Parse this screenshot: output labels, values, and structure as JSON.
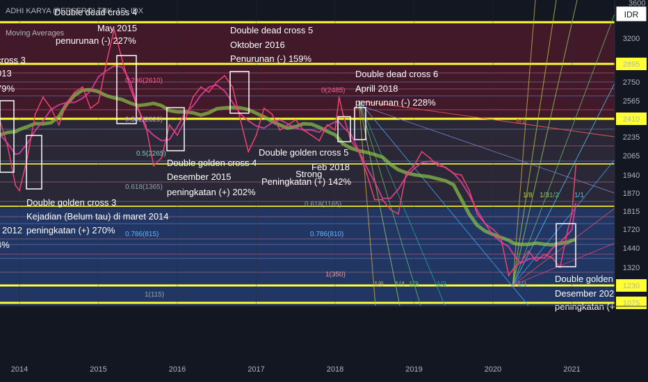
{
  "header": {
    "ticker_line": "ADHI KARYA (PERSERO) TBK, 1D, IDX",
    "indicator": "Moving Averages",
    "currency": "IDR"
  },
  "colors": {
    "background": "#131722",
    "price_line": "#f0436f",
    "ma_short": "#e040a0",
    "ma_long": "#8bc34a",
    "key_level": "#ffff33",
    "box": "#ffffff",
    "fan": "#42a5f5"
  },
  "chart_data": {
    "type": "line",
    "title": "",
    "xlabel": "",
    "ylabel": "",
    "x_ticks": [
      "2014",
      "2015",
      "2016",
      "2017",
      "2018",
      "2019",
      "2020",
      "2021"
    ],
    "y_ticks": [
      3600,
      3200,
      2895,
      2750,
      2565,
      2410,
      2235,
      2065,
      1940,
      1870,
      1815,
      1720,
      1440,
      1320,
      1230,
      1075
    ],
    "highlighted_levels": [
      3380,
      2895,
      2410,
      1230,
      1075
    ],
    "top_clipped_level": 3600,
    "series": [
      {
        "name": "",
        "x": [
          2013.5,
          2013.65,
          2013.75,
          2013.85,
          2013.95,
          2014.0,
          2014.1,
          2014.2,
          2014.3,
          2014.4,
          2014.5,
          2014.6,
          2014.7,
          2014.8,
          2014.9,
          2015.0,
          2015.1,
          2015.2,
          2015.3,
          2015.4,
          2015.5,
          2015.6,
          2015.7,
          2015.8,
          2015.9,
          2016.0,
          2016.1,
          2016.2,
          2016.3,
          2016.4,
          2016.5,
          2016.6,
          2016.7,
          2016.8,
          2016.9,
          2017.0,
          2017.1,
          2017.2,
          2017.3,
          2017.4,
          2017.5,
          2017.6,
          2017.7,
          2017.8,
          2017.9,
          2018.0,
          2018.05,
          2018.1,
          2018.2,
          2018.3,
          2018.4,
          2018.5,
          2018.6,
          2018.7,
          2018.8,
          2018.9,
          2019.0,
          2019.1,
          2019.2,
          2019.3,
          2019.4,
          2019.5,
          2019.6,
          2019.7,
          2019.8,
          2019.9,
          2020.0,
          2020.1,
          2020.2,
          2020.27,
          2020.35,
          2020.45,
          2020.55,
          2020.65,
          2020.75,
          2020.85,
          2020.95,
          2021.0,
          2021.05
        ],
        "values": [
          2300,
          2550,
          2400,
          2150,
          1900,
          1880,
          2050,
          2450,
          2600,
          2500,
          2350,
          2550,
          2650,
          2700,
          2500,
          2550,
          2900,
          3300,
          2950,
          2700,
          2500,
          2350,
          2000,
          2050,
          2350,
          2250,
          2400,
          2600,
          2700,
          2650,
          2750,
          2800,
          2700,
          2400,
          2100,
          2250,
          2500,
          2450,
          2300,
          2350,
          2400,
          2300,
          2250,
          2200,
          2350,
          2300,
          2600,
          2450,
          2200,
          2100,
          1950,
          1850,
          1850,
          1820,
          1800,
          1950,
          2000,
          2100,
          2050,
          2000,
          1990,
          1950,
          1940,
          1880,
          1800,
          1750,
          1720,
          1600,
          1280,
          1320,
          1350,
          1420,
          1360,
          1400,
          1380,
          1320,
          1720,
          1800,
          2000
        ]
      }
    ],
    "annotations": [
      {
        "text": "Double dead cross 4",
        "x": 2014.45
      },
      {
        "text": "May 2015",
        "x": 2014.95
      },
      {
        "text": "penurunan (-) 227%",
        "x": 2014.45
      },
      {
        "text": "Double dead cross 5",
        "x": 2016.6
      },
      {
        "text": "Oktober 2016",
        "x": 2016.6
      },
      {
        "text": "Penurunan (-) 159%",
        "x": 2016.6
      },
      {
        "text": "Double dead cross 6",
        "x": 2018.2
      },
      {
        "text": "Aprill 2018",
        "x": 2018.2
      },
      {
        "text": "penurunan (-) 228%",
        "x": 2018.2
      },
      {
        "text": "cross 3",
        "x": 2013.6
      },
      {
        "text": "013",
        "x": 2013.6
      },
      {
        "text": "79%",
        "x": 2013.6
      },
      {
        "text": "Double golden cross 4",
        "x": 2015.85
      },
      {
        "text": "Desember 2015",
        "x": 2015.85
      },
      {
        "text": "peningkatan (+) 202%",
        "x": 2015.85
      },
      {
        "text": "Double golden cross 5",
        "x": 2017.0
      },
      {
        "text": "Feb 2018",
        "x": 2017.65
      },
      {
        "text": "Peningkatan (+) 142%",
        "x": 2017.05
      },
      {
        "text": "Double golden cross 3",
        "x": 2014.1
      },
      {
        "text": "Kejadian (Belum tau) di maret 2014",
        "x": 2014.1
      },
      {
        "text": "peningkatan (+) 270%",
        "x": 2014.1
      },
      {
        "text": "2012",
        "x": 2013.6
      },
      {
        "text": "4%",
        "x": 2013.6
      },
      {
        "text": "Double golden",
        "x": 2020.8
      },
      {
        "text": "Desember 2020",
        "x": 2020.8
      },
      {
        "text": "peningkatan (+",
        "x": 2020.8
      },
      {
        "text": "Strong",
        "x": 2017.45
      }
    ],
    "fib_labels": [
      "0.236(2610)",
      "0.382(2320)",
      "0.5(2265)",
      "0.618(1365)",
      "0.786(815)",
      "1(115)",
      "0(2485)",
      "0.618(1165)",
      "0.786(810)",
      "1(350)"
    ],
    "fan_labels": [
      "8/1",
      "1/8",
      "1/3",
      "1/2",
      "1/1",
      "1/6",
      "1/4",
      "1/3",
      "1/2",
      "1/1"
    ],
    "legend": "none",
    "grid": true
  }
}
